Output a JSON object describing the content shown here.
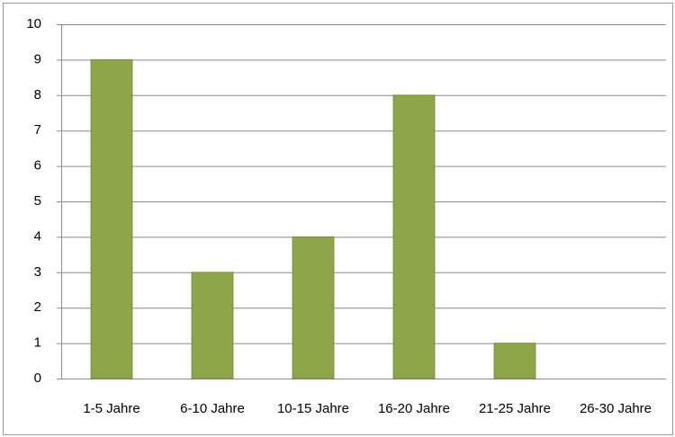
{
  "chart_data": {
    "type": "bar",
    "categories": [
      "1-5 Jahre",
      "6-10 Jahre",
      "10-15 Jahre",
      "16-20 Jahre",
      "21-25 Jahre",
      "26-30 Jahre"
    ],
    "values": [
      9,
      3,
      4,
      8,
      1,
      0
    ],
    "color": "#8ea64a",
    "ylim": [
      0,
      10
    ],
    "yticks": [
      0,
      1,
      2,
      3,
      4,
      5,
      6,
      7,
      8,
      9,
      10
    ],
    "grid": true
  }
}
